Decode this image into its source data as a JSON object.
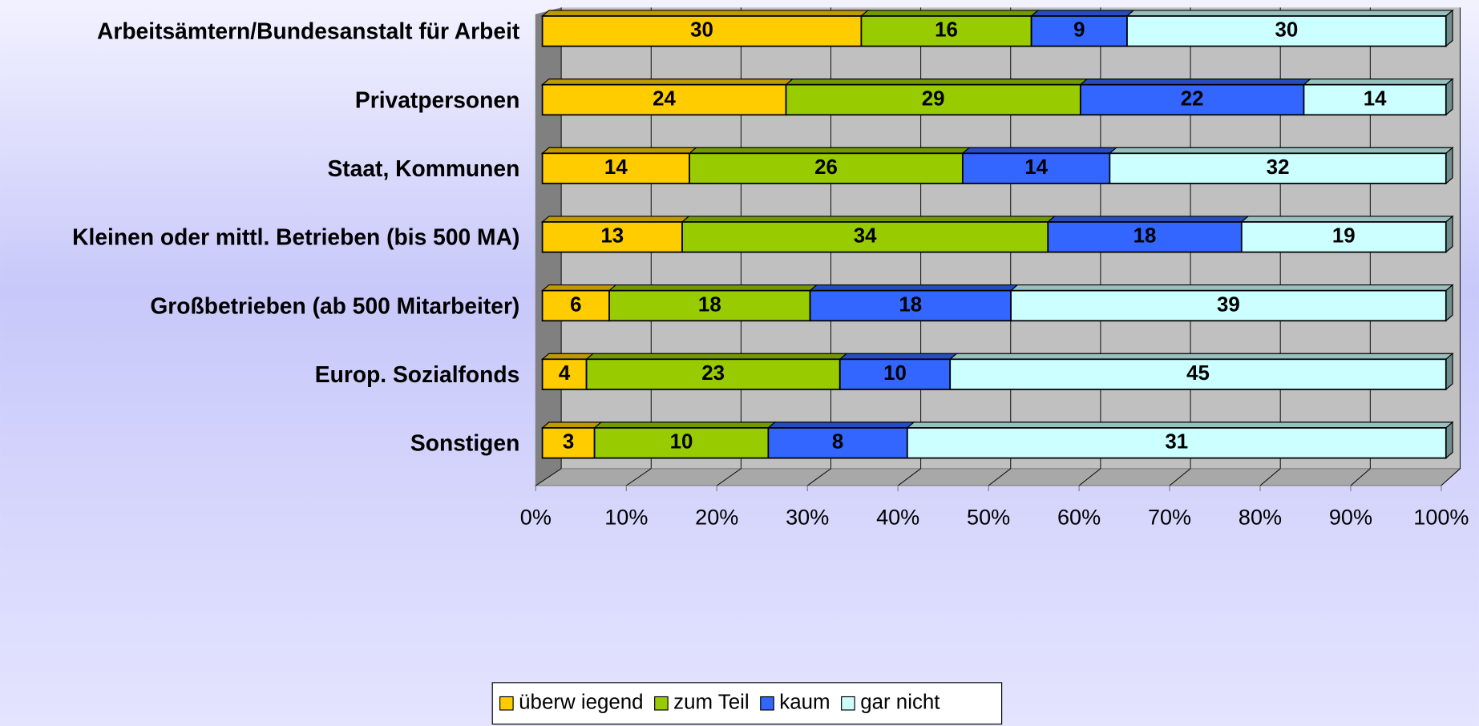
{
  "chart_data": {
    "type": "bar",
    "orientation": "horizontal",
    "stacking": "percent",
    "categories": [
      "Arbeitsämtern/Bundesanstalt für Arbeit",
      "Privatpersonen",
      "Staat, Kommunen",
      "Kleinen oder mittl. Betrieben (bis 500 MA)",
      "Großbetrieben (ab 500 Mitarbeiter)",
      "Europ. Sozialfonds",
      "Sonstigen"
    ],
    "series": [
      {
        "name": "überw iegend",
        "color": "#ffcc00",
        "values": [
          30,
          24,
          14,
          13,
          6,
          4,
          3
        ]
      },
      {
        "name": "zum Teil",
        "color": "#99cc00",
        "values": [
          16,
          29,
          26,
          34,
          18,
          23,
          10
        ]
      },
      {
        "name": "kaum",
        "color": "#3366ff",
        "values": [
          9,
          22,
          14,
          18,
          18,
          10,
          8
        ]
      },
      {
        "name": "gar nicht",
        "color": "#ccffff",
        "values": [
          30,
          14,
          32,
          19,
          39,
          45,
          31
        ]
      }
    ],
    "xlim": [
      0,
      100
    ],
    "xticks": [
      {
        "value": 0,
        "label": "0%"
      },
      {
        "value": 10,
        "label": "10%"
      },
      {
        "value": 20,
        "label": "20%"
      },
      {
        "value": 30,
        "label": "30%"
      },
      {
        "value": 40,
        "label": "40%"
      },
      {
        "value": 50,
        "label": "50%"
      },
      {
        "value": 60,
        "label": "60%"
      },
      {
        "value": 70,
        "label": "70%"
      },
      {
        "value": 80,
        "label": "80%"
      },
      {
        "value": 90,
        "label": "90%"
      },
      {
        "value": 100,
        "label": "100%"
      }
    ],
    "grid": true,
    "legend": "bottom"
  }
}
